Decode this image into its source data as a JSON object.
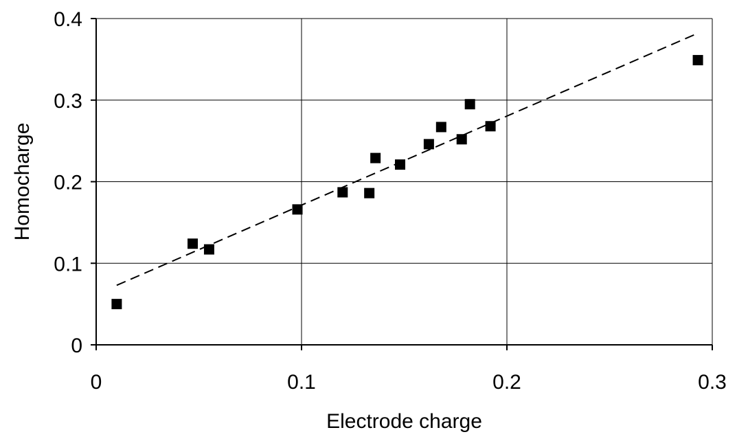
{
  "chart_data": {
    "type": "scatter",
    "title": "",
    "xlabel": "Electrode charge",
    "ylabel": "Homocharge",
    "xlim": [
      0,
      0.3
    ],
    "ylim": [
      0,
      0.4
    ],
    "x_ticks": [
      0,
      0.1,
      0.2,
      0.3
    ],
    "y_ticks": [
      0,
      0.1,
      0.2,
      0.3,
      0.4
    ],
    "x_tick_labels": [
      "0",
      "0.1",
      "0.2",
      "0.3"
    ],
    "y_tick_labels": [
      "0",
      "0.1",
      "0.2",
      "0.3",
      "0.4"
    ],
    "grid": true,
    "legend": "none",
    "marker": "square",
    "marker_color": "#000000",
    "points": [
      {
        "x": 0.01,
        "y": 0.05
      },
      {
        "x": 0.047,
        "y": 0.124
      },
      {
        "x": 0.055,
        "y": 0.117
      },
      {
        "x": 0.098,
        "y": 0.166
      },
      {
        "x": 0.12,
        "y": 0.187
      },
      {
        "x": 0.133,
        "y": 0.186
      },
      {
        "x": 0.136,
        "y": 0.229
      },
      {
        "x": 0.148,
        "y": 0.221
      },
      {
        "x": 0.162,
        "y": 0.246
      },
      {
        "x": 0.168,
        "y": 0.267
      },
      {
        "x": 0.178,
        "y": 0.252
      },
      {
        "x": 0.182,
        "y": 0.295
      },
      {
        "x": 0.192,
        "y": 0.268
      },
      {
        "x": 0.293,
        "y": 0.349
      }
    ],
    "trendline": {
      "style": "dashed",
      "color": "#000000",
      "x": [
        0.01,
        0.293
      ],
      "y": [
        0.073,
        0.382
      ]
    }
  }
}
